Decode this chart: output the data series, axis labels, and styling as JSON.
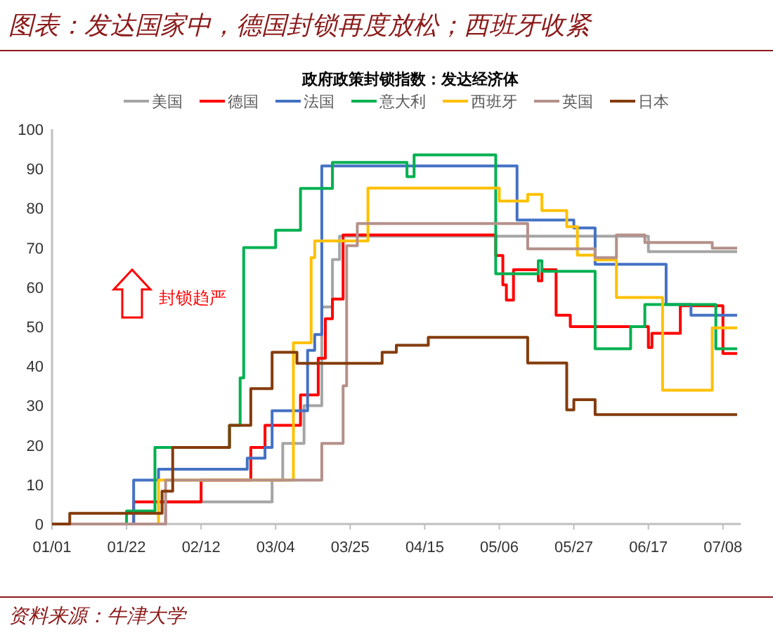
{
  "chart_data": {
    "type": "step",
    "title": "图表：发达国家中，德国封锁再度放松；西班牙收紧",
    "subtitle": "政府政策封锁指数：发达经济体",
    "annotations": [
      "封锁趋严",
      "资料来源：牛津大学"
    ],
    "xlim": [
      "--01-01",
      "--07-13"
    ],
    "xticks": [
      {
        "value": "--01-01",
        "label": "01/01"
      },
      {
        "value": "--01-22",
        "label": "01/22"
      },
      {
        "value": "--02-12",
        "label": "02/12"
      },
      {
        "value": "--03-04",
        "label": "03/04"
      },
      {
        "value": "--03-25",
        "label": "03/25"
      },
      {
        "value": "--04-15",
        "label": "04/15"
      },
      {
        "value": "--05-06",
        "label": "05/06"
      },
      {
        "value": "--05-27",
        "label": "05/27"
      },
      {
        "value": "--06-17",
        "label": "06/17"
      },
      {
        "value": "--07-08",
        "label": "07/08"
      }
    ],
    "ylim": [
      0,
      100
    ],
    "yticks": [
      0,
      10,
      20,
      30,
      40,
      50,
      60,
      70,
      80,
      90,
      100
    ],
    "legend": "top",
    "grid": false,
    "marker": "none",
    "line_style": "solid",
    "series": [
      {
        "name": "美国",
        "color": "#a5a5a5",
        "x": [
          "--01-01",
          "--02-02",
          "--03-03",
          "--03-06",
          "--03-12",
          "--03-17",
          "--03-20",
          "--03-22",
          "--06-17",
          "--07-12"
        ],
        "values": [
          0,
          5.6,
          11.1,
          20.4,
          30,
          55,
          67,
          72.9,
          69,
          69
        ]
      },
      {
        "name": "德国",
        "color": "#ff0000",
        "x": [
          "--01-01",
          "--01-24",
          "--02-12",
          "--02-26",
          "--03-01",
          "--03-11",
          "--03-16",
          "--03-18",
          "--03-20",
          "--03-23",
          "--05-05",
          "--05-07",
          "--05-08",
          "--05-10",
          "--05-17",
          "--05-18",
          "--05-22",
          "--05-26",
          "--06-17",
          "--06-18",
          "--06-26",
          "--07-08",
          "--07-12"
        ],
        "values": [
          0,
          5.6,
          11.1,
          19.4,
          25,
          32.7,
          42,
          52,
          57,
          73.2,
          68,
          60.6,
          56.7,
          64.4,
          61.6,
          64.4,
          52.9,
          50,
          44.7,
          48.3,
          55.3,
          43.2,
          43.2
        ]
      },
      {
        "name": "法国",
        "color": "#4472c4",
        "x": [
          "--01-01",
          "--01-24",
          "--01-31",
          "--02-25",
          "--03-01",
          "--03-03",
          "--03-13",
          "--03-15",
          "--03-17",
          "--05-11",
          "--05-27",
          "--06-02",
          "--06-22",
          "--06-29",
          "--07-12"
        ],
        "values": [
          0,
          11.1,
          13.9,
          16.7,
          19.4,
          28.7,
          44,
          48,
          90.7,
          77,
          75,
          65.8,
          55.6,
          52.9,
          52.9
        ]
      },
      {
        "name": "意大利",
        "color": "#00b050",
        "x": [
          "--01-01",
          "--01-22",
          "--01-30",
          "--02-20",
          "--02-23",
          "--02-24",
          "--03-04",
          "--03-11",
          "--03-20",
          "--04-10",
          "--04-12",
          "--05-05",
          "--05-17",
          "--05-18",
          "--06-02",
          "--06-12",
          "--06-16",
          "--07-06",
          "--07-12"
        ],
        "values": [
          0,
          3.3,
          19.4,
          25,
          37,
          70,
          74.4,
          85,
          91.6,
          88,
          93.5,
          63.4,
          66.7,
          64,
          44.4,
          50,
          55.6,
          44.4,
          44.4
        ]
      },
      {
        "name": "西班牙",
        "color": "#ffc000",
        "x": [
          "--01-01",
          "--01-31",
          "--03-09",
          "--03-14",
          "--03-15",
          "--03-30",
          "--05-06",
          "--05-14",
          "--05-18",
          "--05-25",
          "--05-28",
          "--06-02",
          "--06-08",
          "--06-21",
          "--07-05",
          "--07-12"
        ],
        "values": [
          0,
          11.1,
          45.9,
          67.5,
          71.7,
          85.1,
          81.8,
          83.5,
          79.4,
          75.3,
          68.1,
          66.9,
          57.4,
          33.9,
          49.7,
          49.7
        ]
      },
      {
        "name": "英国",
        "color": "#b4918a",
        "x": [
          "--01-01",
          "--02-02",
          "--03-17",
          "--03-23",
          "--03-24",
          "--03-27",
          "--05-14",
          "--06-02",
          "--06-08",
          "--06-16",
          "--07-05",
          "--07-12"
        ],
        "values": [
          0,
          11.1,
          20.4,
          35,
          70.5,
          76.1,
          69.7,
          67.5,
          73.2,
          71.3,
          69.9,
          69.9
        ]
      },
      {
        "name": "日本",
        "color": "#843c0c",
        "x": [
          "--01-01",
          "--01-06",
          "--02-01",
          "--02-04",
          "--02-20",
          "--02-26",
          "--03-03",
          "--03-10",
          "--04-03",
          "--04-07",
          "--04-16",
          "--05-14",
          "--05-25",
          "--05-27",
          "--06-02",
          "--07-12"
        ],
        "values": [
          0,
          2.7,
          8.3,
          19.4,
          25,
          34.3,
          43.5,
          40.7,
          43.5,
          45.3,
          47.3,
          40.8,
          28.9,
          31.5,
          27.7,
          27.7
        ]
      }
    ]
  }
}
